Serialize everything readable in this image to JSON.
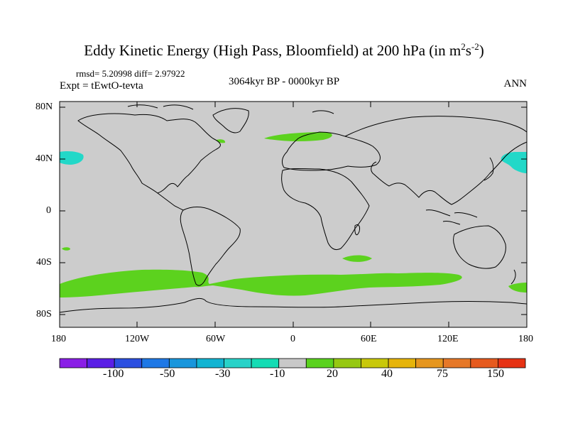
{
  "title": {
    "prefix": "Eddy Kinetic Energy (High Pass, Bloomfield) at 200 hPa (in m",
    "sup1": "2",
    "mid": "s",
    "sup2": "-2",
    "suffix": ")"
  },
  "stats": "rmsd= 5.20998 diff= 2.97922",
  "expt": "Expt = tEwtO-tevta",
  "period": "3064kyr BP - 0000kyr BP",
  "season": "ANN",
  "lat_labels": [
    "80N",
    "40N",
    "0",
    "40S",
    "80S"
  ],
  "lon_labels": [
    "180",
    "120W",
    "60W",
    "0",
    "60E",
    "120E",
    "180"
  ],
  "colorbar": {
    "colors": [
      "#8a1ee6",
      "#5a1fe6",
      "#2b4fe0",
      "#1e78e6",
      "#1996dc",
      "#12b4d2",
      "#28d2c8",
      "#14dcb4",
      "#c8c8c8",
      "#5ad21e",
      "#96c812",
      "#c8c80a",
      "#e6b40a",
      "#e6961e",
      "#e67828",
      "#e65a1e",
      "#e63214"
    ],
    "labels": [
      "-100",
      "-50",
      "-30",
      "-10",
      "20",
      "40",
      "75",
      "150"
    ]
  },
  "colors": {
    "background": "#cccccc",
    "positive": "#5cd21e",
    "negative": "#22d8c8",
    "coast": "#000000"
  }
}
